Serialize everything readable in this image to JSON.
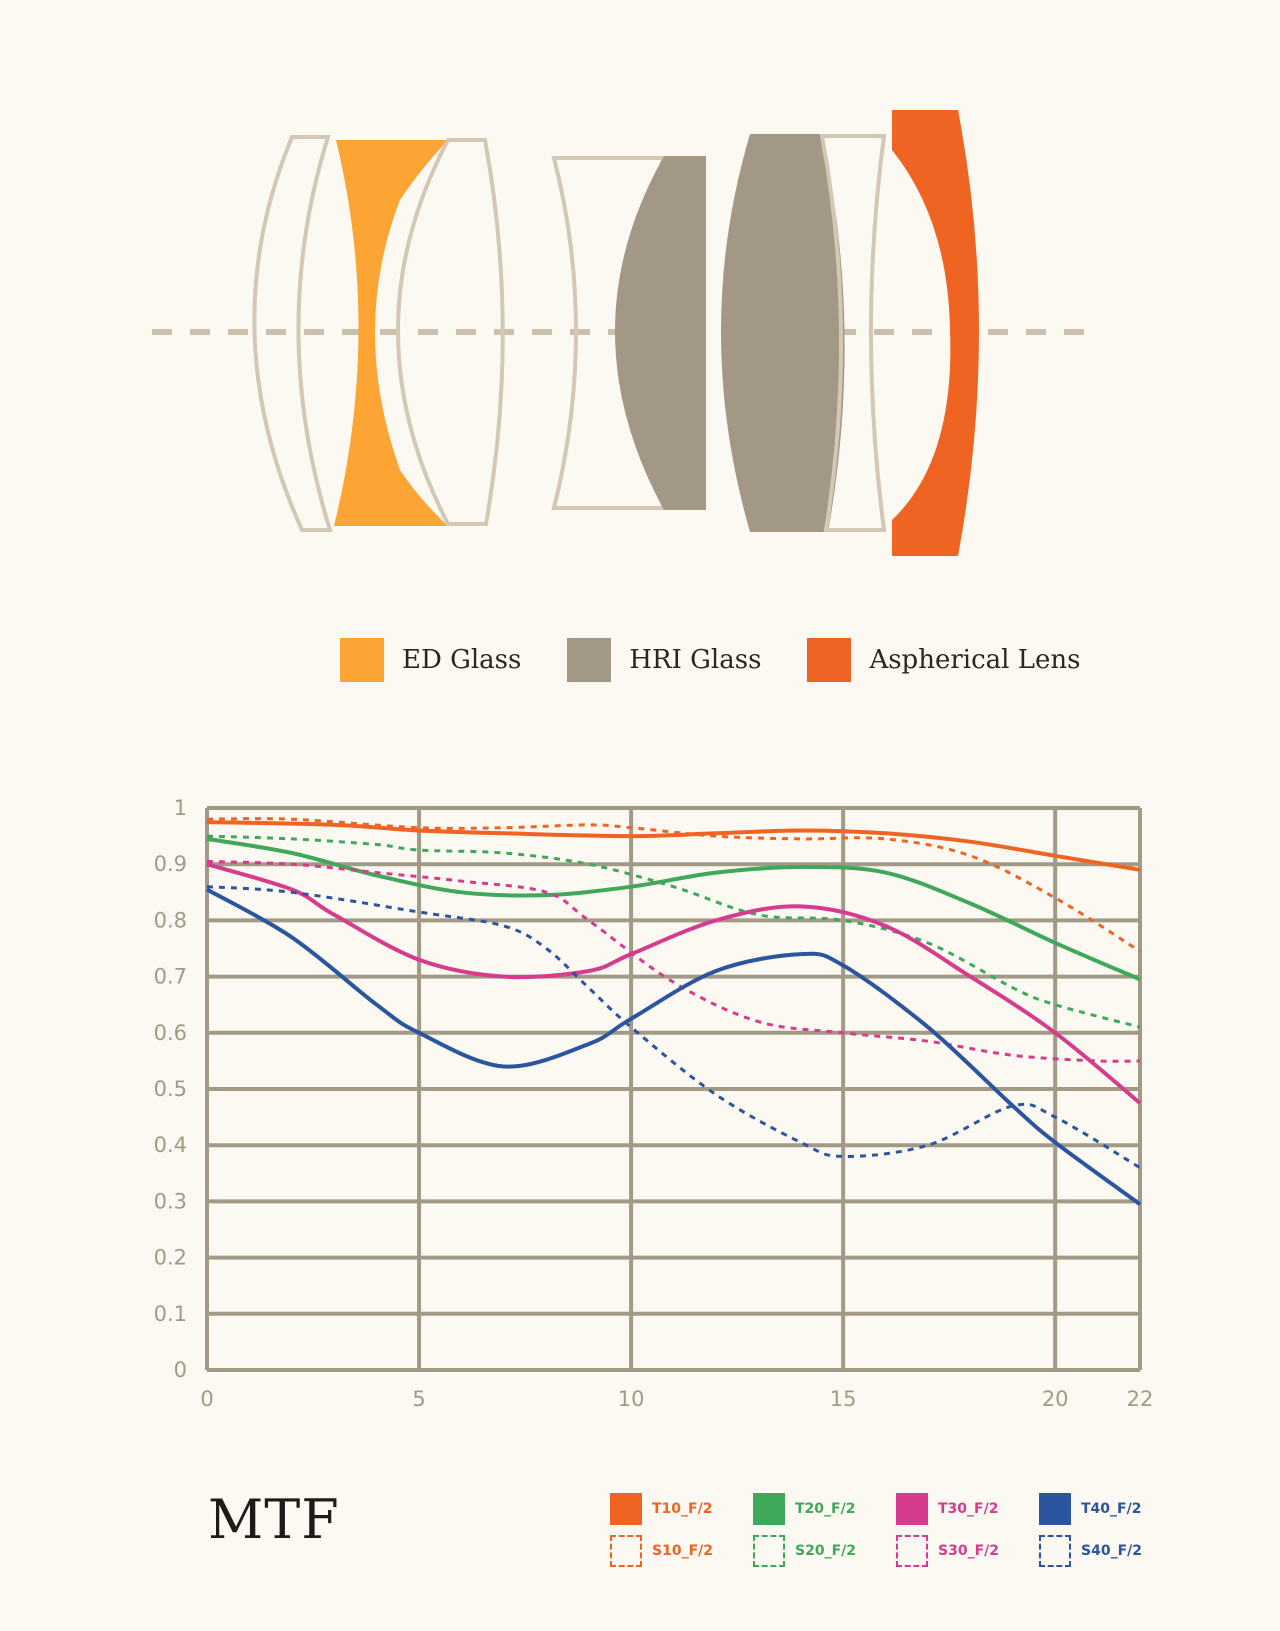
{
  "lens_legend": [
    {
      "label": "ED Glass",
      "color": "#fca535"
    },
    {
      "label": "HRI Glass",
      "color": "#a39786"
    },
    {
      "label": "Aspherical Lens",
      "color": "#ef6423"
    }
  ],
  "chart_title": "MTF",
  "chart_data": {
    "type": "line",
    "title": "MTF",
    "xlabel": "",
    "ylabel": "",
    "xlim": [
      0,
      22
    ],
    "ylim": [
      0,
      1
    ],
    "grid": true,
    "x_ticks": [
      0,
      5,
      10,
      15,
      20,
      22
    ],
    "y_ticks": [
      0,
      0.1,
      0.2,
      0.3,
      0.4,
      0.5,
      0.6,
      0.7,
      0.8,
      0.9,
      1
    ],
    "x_tick_labels": [
      "0",
      "5",
      "10",
      "15",
      "20",
      "22"
    ],
    "y_tick_labels": [
      "0",
      "0.1",
      "0.2",
      "0.3",
      "0.4",
      "0.5",
      "0.6",
      "0.7",
      "0.8",
      "0.9",
      "1"
    ],
    "legend_position": "bottom-right",
    "series": [
      {
        "name": "T10_F/2",
        "style": "solid",
        "color": "#ef6423",
        "x": [
          0,
          3,
          5,
          7,
          10,
          12,
          14,
          16,
          18,
          20,
          22
        ],
        "y": [
          0.975,
          0.97,
          0.96,
          0.955,
          0.95,
          0.955,
          0.96,
          0.955,
          0.94,
          0.915,
          0.89
        ]
      },
      {
        "name": "S10_F/2",
        "style": "dashed",
        "color": "#ef6423",
        "x": [
          0,
          2,
          5,
          7,
          9,
          10,
          12,
          14,
          16,
          18,
          20,
          22
        ],
        "y": [
          0.98,
          0.98,
          0.965,
          0.965,
          0.97,
          0.965,
          0.95,
          0.945,
          0.945,
          0.915,
          0.84,
          0.745
        ]
      },
      {
        "name": "T20_F/2",
        "style": "solid",
        "color": "#40a85a",
        "x": [
          0,
          2,
          4,
          6,
          8,
          10,
          12,
          14,
          16,
          18,
          20,
          22
        ],
        "y": [
          0.945,
          0.92,
          0.88,
          0.85,
          0.845,
          0.86,
          0.885,
          0.895,
          0.885,
          0.83,
          0.76,
          0.695
        ]
      },
      {
        "name": "S20_F/2",
        "style": "dashed",
        "color": "#40a85a",
        "x": [
          0,
          2,
          4,
          5,
          7,
          9,
          11,
          13,
          15,
          17,
          19,
          20,
          22
        ],
        "y": [
          0.95,
          0.945,
          0.935,
          0.925,
          0.92,
          0.9,
          0.86,
          0.81,
          0.8,
          0.76,
          0.68,
          0.65,
          0.61
        ]
      },
      {
        "name": "T30_F/2",
        "style": "solid",
        "color": "#d73b8d",
        "x": [
          0,
          2,
          3,
          5,
          7,
          9,
          10,
          12,
          14,
          16,
          18,
          20,
          22
        ],
        "y": [
          0.9,
          0.855,
          0.81,
          0.73,
          0.7,
          0.71,
          0.74,
          0.8,
          0.825,
          0.79,
          0.7,
          0.6,
          0.475
        ]
      },
      {
        "name": "S30_F/2",
        "style": "dashed",
        "color": "#d73b8d",
        "x": [
          0,
          2,
          4,
          6,
          8,
          9,
          11,
          13,
          15,
          17,
          19,
          21,
          22
        ],
        "y": [
          0.905,
          0.9,
          0.885,
          0.87,
          0.85,
          0.8,
          0.69,
          0.62,
          0.6,
          0.585,
          0.56,
          0.55,
          0.55
        ]
      },
      {
        "name": "T40_F/2",
        "style": "solid",
        "color": "#2c55a0",
        "x": [
          0,
          2,
          4,
          5,
          7,
          9,
          10,
          12,
          14,
          15,
          17,
          19,
          20,
          22
        ],
        "y": [
          0.855,
          0.77,
          0.65,
          0.6,
          0.54,
          0.58,
          0.625,
          0.71,
          0.74,
          0.72,
          0.61,
          0.47,
          0.405,
          0.295
        ]
      },
      {
        "name": "S40_F/2",
        "style": "dashed",
        "color": "#2c55a0",
        "x": [
          0,
          2,
          5,
          7,
          8,
          9,
          10,
          12,
          14,
          15,
          17,
          19,
          20,
          22
        ],
        "y": [
          0.86,
          0.85,
          0.815,
          0.79,
          0.75,
          0.68,
          0.61,
          0.49,
          0.405,
          0.38,
          0.4,
          0.47,
          0.45,
          0.36
        ]
      }
    ]
  }
}
